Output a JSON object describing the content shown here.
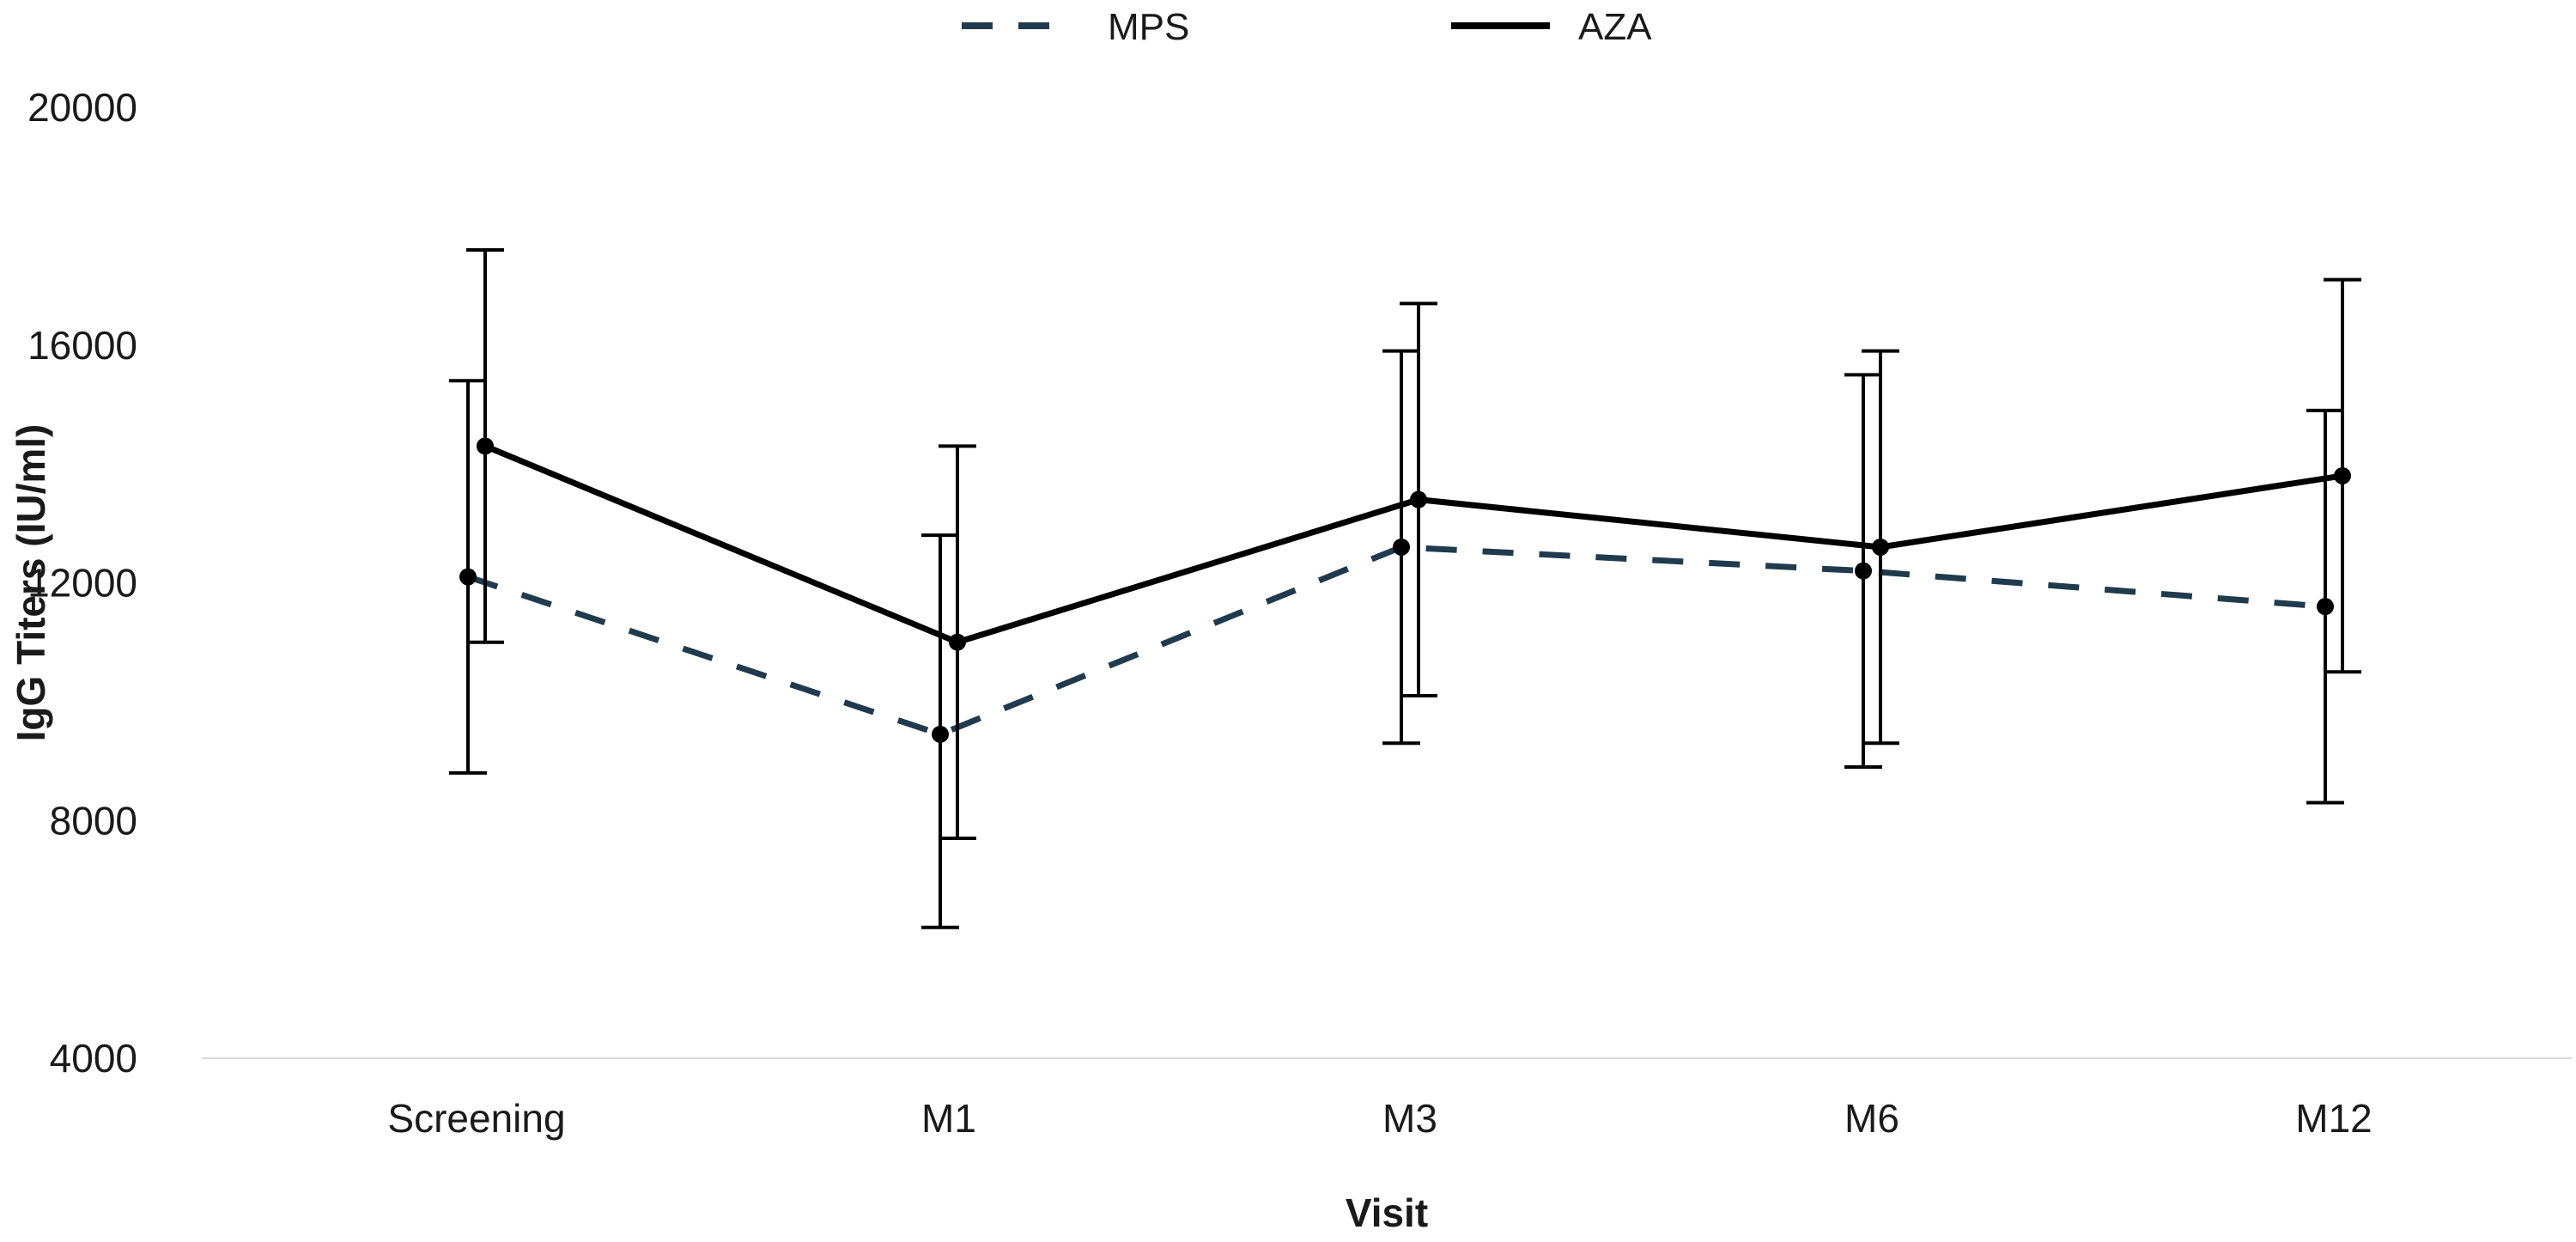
{
  "chart_data": {
    "type": "line",
    "title": "",
    "xlabel": "Visit",
    "ylabel": "IgG Titers (IU/ml)",
    "categories": [
      "Screening",
      "M1",
      "M3",
      "M6",
      "M12"
    ],
    "ylim": [
      4000,
      20000
    ],
    "yticks": [
      4000,
      8000,
      12000,
      16000,
      20000
    ],
    "grid": false,
    "legend_position": "top-center",
    "series": [
      {
        "name": "MPS",
        "style": "dashed",
        "color": "#1f3b4d",
        "values": [
          12100,
          9450,
          12600,
          12200,
          11600
        ],
        "error_low": [
          8800,
          6200,
          9300,
          8900,
          8300
        ],
        "error_high": [
          15400,
          12800,
          15900,
          15500,
          14900
        ]
      },
      {
        "name": "AZA",
        "style": "solid",
        "color": "#000000",
        "values": [
          14300,
          11000,
          13400,
          12600,
          13800
        ],
        "error_low": [
          11000,
          7700,
          10100,
          9300,
          10500
        ],
        "error_high": [
          17600,
          14300,
          16700,
          15900,
          17100
        ]
      }
    ]
  }
}
